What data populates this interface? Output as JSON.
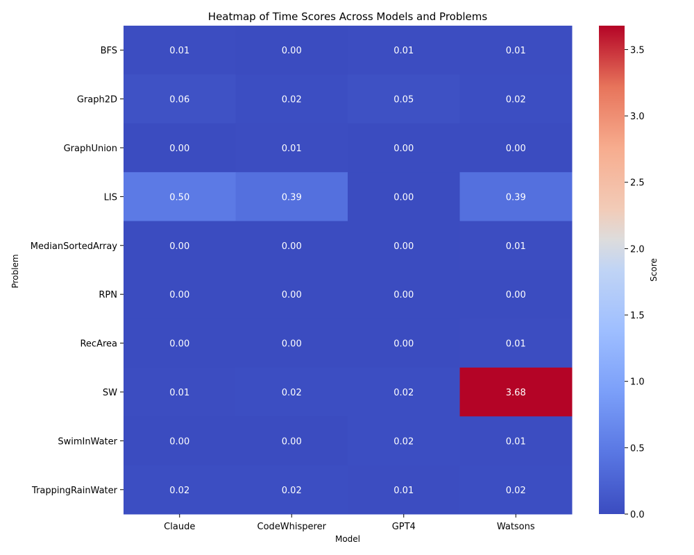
{
  "chart_data": {
    "type": "heatmap",
    "title": "Heatmap of Time Scores Across Models and Problems",
    "xlabel": "Model",
    "ylabel": "Problem",
    "x": [
      "Claude",
      "CodeWhisperer",
      "GPT4",
      "Watsons"
    ],
    "y": [
      "BFS",
      "Graph2D",
      "GraphUnion",
      "LIS",
      "MedianSortedArray",
      "RPN",
      "RecArea",
      "SW",
      "SwimInWater",
      "TrappingRainWater"
    ],
    "values": [
      [
        0.01,
        0.0,
        0.01,
        0.01
      ],
      [
        0.06,
        0.02,
        0.05,
        0.02
      ],
      [
        0.0,
        0.01,
        0.0,
        0.0
      ],
      [
        0.5,
        0.39,
        0.0,
        0.39
      ],
      [
        0.0,
        0.0,
        0.0,
        0.01
      ],
      [
        0.0,
        0.0,
        0.0,
        0.0
      ],
      [
        0.0,
        0.0,
        0.0,
        0.01
      ],
      [
        0.01,
        0.02,
        0.02,
        3.68
      ],
      [
        0.0,
        0.0,
        0.02,
        0.01
      ],
      [
        0.02,
        0.02,
        0.01,
        0.02
      ]
    ],
    "value_labels": [
      [
        "0.01",
        "0.00",
        "0.01",
        "0.01"
      ],
      [
        "0.06",
        "0.02",
        "0.05",
        "0.02"
      ],
      [
        "0.00",
        "0.01",
        "0.00",
        "0.00"
      ],
      [
        "0.50",
        "0.39",
        "0.00",
        "0.39"
      ],
      [
        "0.00",
        "0.00",
        "0.00",
        "0.01"
      ],
      [
        "0.00",
        "0.00",
        "0.00",
        "0.00"
      ],
      [
        "0.00",
        "0.00",
        "0.00",
        "0.01"
      ],
      [
        "0.01",
        "0.02",
        "0.02",
        "3.68"
      ],
      [
        "0.00",
        "0.00",
        "0.02",
        "0.01"
      ],
      [
        "0.02",
        "0.02",
        "0.01",
        "0.02"
      ]
    ],
    "colorbar": {
      "label": "Score",
      "range": [
        0,
        3.68
      ],
      "ticks": [
        0.0,
        0.5,
        1.0,
        1.5,
        2.0,
        2.5,
        3.0,
        3.5
      ],
      "tick_labels": [
        "0.0",
        "0.5",
        "1.0",
        "1.5",
        "2.0",
        "2.5",
        "3.0",
        "3.5"
      ],
      "colormap": "coolwarm",
      "low_color": "#3b4cc0",
      "mid_color": "#dddcdc",
      "high_color": "#b40426"
    },
    "grid": false,
    "legend": "colorbar-right"
  }
}
